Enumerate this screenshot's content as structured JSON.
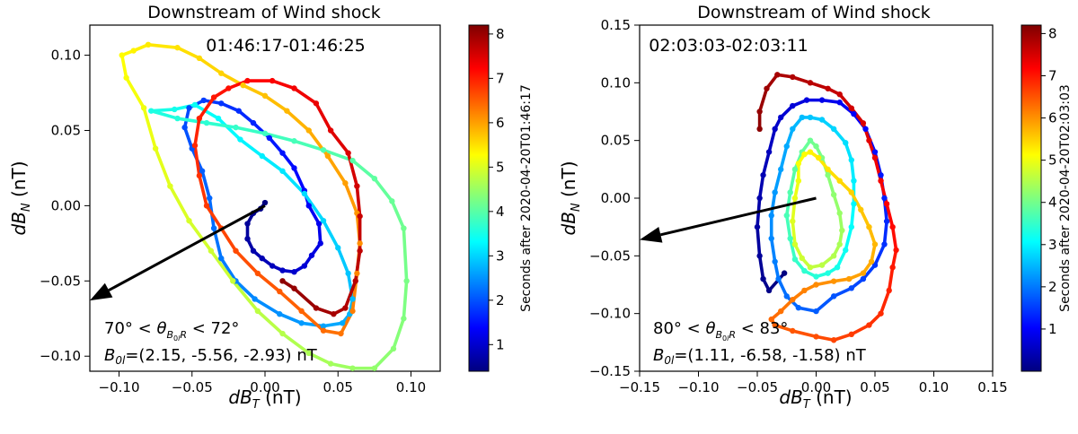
{
  "chart_data": [
    {
      "type": "line",
      "title": "Downstream of Wind shock",
      "time_label": "01:46:17-01:46:25",
      "xlabel_main": "dB",
      "xlabel_sub": "T",
      "xlabel_unit": "(nT)",
      "ylabel_main": "dB",
      "ylabel_sub": "N",
      "ylabel_unit": "(nT)",
      "xlim": [
        -0.12,
        0.12
      ],
      "ylim": [
        -0.11,
        0.12
      ],
      "xticks": [
        -0.1,
        -0.05,
        0.0,
        0.05,
        0.1
      ],
      "xtick_labels": [
        "−0.10",
        "−0.05",
        "0.00",
        "0.05",
        "0.10"
      ],
      "yticks": [
        -0.1,
        -0.05,
        0.0,
        0.05,
        0.1
      ],
      "ytick_labels": [
        "−0.10",
        "−0.05",
        "0.00",
        "0.05",
        "0.10"
      ],
      "angle_range": {
        "low": "70°",
        "high": "72°"
      },
      "b0l": "(2.15, -5.56, -2.93)",
      "b0l_unit": "nT",
      "arrow": {
        "from": [
          0.0,
          0.0
        ],
        "to": [
          -0.12,
          -0.063
        ]
      },
      "colorbar": {
        "label": "Seconds after 2020-04-20T01:46:17",
        "range": [
          0.4,
          8.2
        ],
        "ticks": [
          1,
          2,
          3,
          4,
          5,
          6,
          7,
          8
        ]
      },
      "trajectory": {
        "t_start": 0.4,
        "t_end": 8.1,
        "points": [
          [
            0.0,
            0.002
          ],
          [
            -0.003,
            -0.002
          ],
          [
            -0.008,
            -0.005
          ],
          [
            -0.012,
            -0.012
          ],
          [
            -0.012,
            -0.022
          ],
          [
            -0.008,
            -0.03
          ],
          [
            -0.002,
            -0.035
          ],
          [
            0.005,
            -0.04
          ],
          [
            0.012,
            -0.043
          ],
          [
            0.02,
            -0.044
          ],
          [
            0.027,
            -0.04
          ],
          [
            0.032,
            -0.033
          ],
          [
            0.038,
            -0.025
          ],
          [
            0.037,
            -0.012
          ],
          [
            0.03,
            0.0
          ],
          [
            0.027,
            0.01
          ],
          [
            0.02,
            0.025
          ],
          [
            0.012,
            0.035
          ],
          [
            0.003,
            0.045
          ],
          [
            -0.008,
            0.055
          ],
          [
            -0.018,
            0.063
          ],
          [
            -0.03,
            0.068
          ],
          [
            -0.042,
            0.07
          ],
          [
            -0.052,
            0.065
          ],
          [
            -0.055,
            0.052
          ],
          [
            -0.05,
            0.038
          ],
          [
            -0.043,
            0.023
          ],
          [
            -0.038,
            0.005
          ],
          [
            -0.035,
            -0.015
          ],
          [
            -0.03,
            -0.035
          ],
          [
            -0.02,
            -0.05
          ],
          [
            -0.007,
            -0.062
          ],
          [
            0.01,
            -0.072
          ],
          [
            0.025,
            -0.078
          ],
          [
            0.04,
            -0.08
          ],
          [
            0.053,
            -0.078
          ],
          [
            0.058,
            -0.072
          ],
          [
            0.06,
            -0.062
          ],
          [
            0.057,
            -0.045
          ],
          [
            0.05,
            -0.028
          ],
          [
            0.04,
            -0.01
          ],
          [
            0.027,
            0.008
          ],
          [
            0.012,
            0.023
          ],
          [
            -0.002,
            0.033
          ],
          [
            -0.017,
            0.044
          ],
          [
            -0.032,
            0.058
          ],
          [
            -0.048,
            0.067
          ],
          [
            -0.062,
            0.064
          ],
          [
            -0.078,
            0.063
          ],
          [
            -0.06,
            0.058
          ],
          [
            -0.04,
            0.055
          ],
          [
            -0.02,
            0.052
          ],
          [
            0.0,
            0.048
          ],
          [
            0.02,
            0.043
          ],
          [
            0.04,
            0.037
          ],
          [
            0.06,
            0.03
          ],
          [
            0.075,
            0.018
          ],
          [
            0.087,
            0.003
          ],
          [
            0.095,
            -0.015
          ],
          [
            0.097,
            -0.05
          ],
          [
            0.095,
            -0.075
          ],
          [
            0.088,
            -0.095
          ],
          [
            0.075,
            -0.108
          ],
          [
            0.06,
            -0.108
          ],
          [
            0.045,
            -0.105
          ],
          [
            0.03,
            -0.098
          ],
          [
            0.012,
            -0.085
          ],
          [
            -0.005,
            -0.07
          ],
          [
            -0.022,
            -0.05
          ],
          [
            -0.037,
            -0.03
          ],
          [
            -0.052,
            -0.01
          ],
          [
            -0.065,
            0.013
          ],
          [
            -0.075,
            0.038
          ],
          [
            -0.083,
            0.065
          ],
          [
            -0.095,
            0.085
          ],
          [
            -0.098,
            0.1
          ],
          [
            -0.09,
            0.103
          ],
          [
            -0.08,
            0.107
          ],
          [
            -0.06,
            0.105
          ],
          [
            -0.045,
            0.098
          ],
          [
            -0.03,
            0.088
          ],
          [
            -0.015,
            0.08
          ],
          [
            0.0,
            0.073
          ],
          [
            0.015,
            0.063
          ],
          [
            0.03,
            0.05
          ],
          [
            0.043,
            0.033
          ],
          [
            0.055,
            0.015
          ],
          [
            0.063,
            -0.005
          ],
          [
            0.065,
            -0.025
          ],
          [
            0.063,
            -0.045
          ],
          [
            0.06,
            -0.07
          ],
          [
            0.052,
            -0.085
          ],
          [
            0.04,
            -0.083
          ],
          [
            0.025,
            -0.07
          ],
          [
            0.01,
            -0.057
          ],
          [
            -0.005,
            -0.045
          ],
          [
            -0.02,
            -0.03
          ],
          [
            -0.03,
            -0.015
          ],
          [
            -0.04,
            0.0
          ],
          [
            -0.045,
            0.02
          ],
          [
            -0.048,
            0.04
          ],
          [
            -0.045,
            0.058
          ],
          [
            -0.035,
            0.072
          ],
          [
            -0.025,
            0.078
          ],
          [
            -0.012,
            0.083
          ],
          [
            0.005,
            0.083
          ],
          [
            0.02,
            0.078
          ],
          [
            0.035,
            0.068
          ],
          [
            0.045,
            0.05
          ],
          [
            0.057,
            0.035
          ],
          [
            0.063,
            0.013
          ],
          [
            0.065,
            -0.007
          ],
          [
            0.065,
            -0.03
          ],
          [
            0.062,
            -0.05
          ],
          [
            0.055,
            -0.068
          ],
          [
            0.047,
            -0.072
          ],
          [
            0.035,
            -0.068
          ],
          [
            0.02,
            -0.055
          ],
          [
            0.012,
            -0.05
          ]
        ]
      }
    },
    {
      "type": "line",
      "title": "Downstream of Wind shock",
      "time_label": "02:03:03-02:03:11",
      "xlabel_main": "dB",
      "xlabel_sub": "T",
      "xlabel_unit": "(nT)",
      "ylabel_main": "dB",
      "ylabel_sub": "N",
      "ylabel_unit": "(nT)",
      "xlim": [
        -0.15,
        0.15
      ],
      "ylim": [
        -0.15,
        0.15
      ],
      "xticks": [
        -0.15,
        -0.1,
        -0.05,
        0.0,
        0.05,
        0.1,
        0.15
      ],
      "xtick_labels": [
        "−0.15",
        "−0.10",
        "−0.05",
        "0.00",
        "0.05",
        "0.10",
        "0.15"
      ],
      "yticks": [
        -0.15,
        -0.1,
        -0.05,
        0.0,
        0.05,
        0.1,
        0.15
      ],
      "ytick_labels": [
        "−0.15",
        "−0.10",
        "−0.05",
        "0.00",
        "0.05",
        "0.10",
        "0.15"
      ],
      "angle_range": {
        "low": "80°",
        "high": "83°"
      },
      "b0l": "(1.11, -6.58, -1.58)",
      "b0l_unit": "nT",
      "arrow": {
        "from": [
          0.0,
          0.0
        ],
        "to": [
          -0.15,
          -0.036
        ]
      },
      "colorbar": {
        "label": "Seconds after 2020-04-20T02:03:03",
        "range": [
          0.0,
          8.2
        ],
        "ticks": [
          1,
          2,
          3,
          4,
          5,
          6,
          7,
          8
        ]
      },
      "trajectory": {
        "t_start": 0.0,
        "t_end": 8.1,
        "points": [
          [
            -0.027,
            -0.065
          ],
          [
            -0.04,
            -0.08
          ],
          [
            -0.045,
            -0.07
          ],
          [
            -0.048,
            -0.05
          ],
          [
            -0.05,
            -0.025
          ],
          [
            -0.048,
            0.0
          ],
          [
            -0.045,
            0.02
          ],
          [
            -0.04,
            0.04
          ],
          [
            -0.035,
            0.06
          ],
          [
            -0.03,
            0.07
          ],
          [
            -0.02,
            0.08
          ],
          [
            -0.008,
            0.085
          ],
          [
            0.005,
            0.085
          ],
          [
            0.02,
            0.083
          ],
          [
            0.032,
            0.073
          ],
          [
            0.042,
            0.06
          ],
          [
            0.05,
            0.04
          ],
          [
            0.055,
            0.02
          ],
          [
            0.058,
            0.0
          ],
          [
            0.06,
            -0.02
          ],
          [
            0.058,
            -0.04
          ],
          [
            0.05,
            -0.058
          ],
          [
            0.04,
            -0.07
          ],
          [
            0.03,
            -0.078
          ],
          [
            0.015,
            -0.085
          ],
          [
            0.0,
            -0.098
          ],
          [
            -0.015,
            -0.095
          ],
          [
            -0.025,
            -0.085
          ],
          [
            -0.032,
            -0.07
          ],
          [
            -0.035,
            -0.055
          ],
          [
            -0.038,
            -0.035
          ],
          [
            -0.038,
            -0.015
          ],
          [
            -0.035,
            0.005
          ],
          [
            -0.03,
            0.025
          ],
          [
            -0.025,
            0.045
          ],
          [
            -0.02,
            0.06
          ],
          [
            -0.012,
            0.07
          ],
          [
            -0.005,
            0.07
          ],
          [
            0.005,
            0.068
          ],
          [
            0.015,
            0.06
          ],
          [
            0.025,
            0.048
          ],
          [
            0.03,
            0.033
          ],
          [
            0.032,
            0.015
          ],
          [
            0.032,
            -0.005
          ],
          [
            0.03,
            -0.025
          ],
          [
            0.025,
            -0.045
          ],
          [
            0.018,
            -0.06
          ],
          [
            0.01,
            -0.065
          ],
          [
            0.0,
            -0.068
          ],
          [
            -0.01,
            -0.063
          ],
          [
            -0.018,
            -0.053
          ],
          [
            -0.022,
            -0.035
          ],
          [
            -0.025,
            -0.015
          ],
          [
            -0.022,
            0.005
          ],
          [
            -0.018,
            0.025
          ],
          [
            -0.012,
            0.04
          ],
          [
            -0.005,
            0.05
          ],
          [
            0.0,
            0.045
          ],
          [
            0.005,
            0.035
          ],
          [
            0.01,
            0.02
          ],
          [
            0.015,
            0.003
          ],
          [
            0.02,
            -0.013
          ],
          [
            0.022,
            -0.028
          ],
          [
            0.02,
            -0.04
          ],
          [
            0.015,
            -0.05
          ],
          [
            0.005,
            -0.058
          ],
          [
            -0.005,
            -0.06
          ],
          [
            -0.012,
            -0.052
          ],
          [
            -0.018,
            -0.04
          ],
          [
            -0.02,
            -0.02
          ],
          [
            -0.018,
            0.0
          ],
          [
            -0.015,
            0.015
          ],
          [
            -0.015,
            0.03
          ],
          [
            -0.01,
            0.038
          ],
          [
            -0.005,
            0.04
          ],
          [
            0.002,
            0.035
          ],
          [
            0.01,
            0.025
          ],
          [
            0.02,
            0.015
          ],
          [
            0.03,
            0.005
          ],
          [
            0.038,
            -0.01
          ],
          [
            0.045,
            -0.025
          ],
          [
            0.05,
            -0.04
          ],
          [
            0.047,
            -0.055
          ],
          [
            0.04,
            -0.065
          ],
          [
            0.028,
            -0.07
          ],
          [
            0.015,
            -0.072
          ],
          [
            0.0,
            -0.075
          ],
          [
            -0.01,
            -0.08
          ],
          [
            -0.02,
            -0.088
          ],
          [
            -0.03,
            -0.098
          ],
          [
            -0.038,
            -0.105
          ],
          [
            -0.035,
            -0.11
          ],
          [
            -0.02,
            -0.115
          ],
          [
            0.0,
            -0.12
          ],
          [
            0.015,
            -0.123
          ],
          [
            0.03,
            -0.118
          ],
          [
            0.045,
            -0.11
          ],
          [
            0.055,
            -0.1
          ],
          [
            0.062,
            -0.08
          ],
          [
            0.065,
            -0.06
          ],
          [
            0.068,
            -0.045
          ],
          [
            0.065,
            -0.025
          ],
          [
            0.06,
            -0.005
          ],
          [
            0.055,
            0.015
          ],
          [
            0.05,
            0.035
          ],
          [
            0.045,
            0.05
          ],
          [
            0.04,
            0.065
          ],
          [
            0.03,
            0.078
          ],
          [
            0.02,
            0.09
          ],
          [
            0.01,
            0.095
          ],
          [
            -0.005,
            0.1
          ],
          [
            -0.02,
            0.105
          ],
          [
            -0.033,
            0.107
          ],
          [
            -0.042,
            0.095
          ],
          [
            -0.048,
            0.075
          ],
          [
            -0.048,
            0.06
          ]
        ]
      }
    }
  ]
}
